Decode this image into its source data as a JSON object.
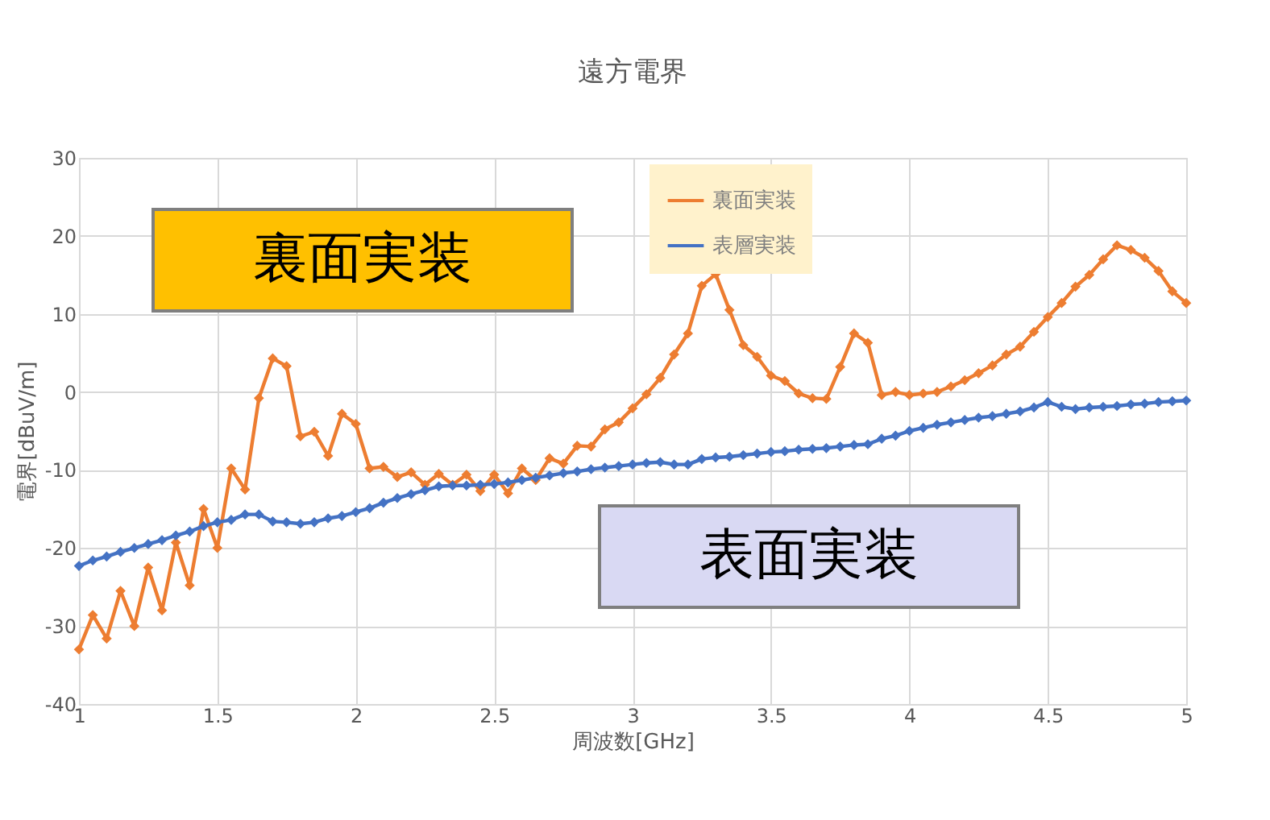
{
  "chart_data": {
    "type": "line",
    "title": "遠方電界",
    "xlabel": "周波数[GHz]",
    "ylabel": "電界[dBuV/m]",
    "x": [
      1.0,
      1.05,
      1.1,
      1.15,
      1.2,
      1.25,
      1.3,
      1.35,
      1.4,
      1.45,
      1.5,
      1.55,
      1.6,
      1.65,
      1.7,
      1.75,
      1.8,
      1.85,
      1.9,
      1.95,
      2.0,
      2.05,
      2.1,
      2.15,
      2.2,
      2.25,
      2.3,
      2.35,
      2.4,
      2.45,
      2.5,
      2.55,
      2.6,
      2.65,
      2.7,
      2.75,
      2.8,
      2.85,
      2.9,
      2.95,
      3.0,
      3.05,
      3.1,
      3.15,
      3.2,
      3.25,
      3.3,
      3.35,
      3.4,
      3.45,
      3.5,
      3.55,
      3.6,
      3.65,
      3.7,
      3.75,
      3.8,
      3.85,
      3.9,
      3.95,
      4.0,
      4.05,
      4.1,
      4.15,
      4.2,
      4.25,
      4.3,
      4.35,
      4.4,
      4.45,
      4.5,
      4.55,
      4.6,
      4.65,
      4.7,
      4.75,
      4.8,
      4.85,
      4.9,
      4.95,
      5.0
    ],
    "series": [
      {
        "name": "裏面実装",
        "color": "#ed7d31",
        "values": [
          -33.0,
          -28.6,
          -31.6,
          -25.5,
          -30.0,
          -22.5,
          -28.0,
          -19.3,
          -24.8,
          -15.0,
          -20.0,
          -9.8,
          -12.5,
          -0.8,
          4.3,
          3.3,
          -5.7,
          -5.1,
          -8.2,
          -2.8,
          -4.1,
          -9.8,
          -9.6,
          -10.9,
          -10.3,
          -11.9,
          -10.5,
          -11.9,
          -10.6,
          -12.7,
          -10.6,
          -13.0,
          -9.8,
          -11.3,
          -8.5,
          -9.2,
          -6.9,
          -7.0,
          -4.8,
          -3.9,
          -2.1,
          -0.3,
          1.8,
          4.8,
          7.5,
          13.6,
          15.1,
          10.5,
          6.0,
          4.5,
          2.1,
          1.4,
          -0.2,
          -0.8,
          -0.9,
          3.2,
          7.5,
          6.3,
          -0.4,
          0.0,
          -0.4,
          -0.2,
          0.0,
          0.7,
          1.5,
          2.4,
          3.4,
          4.8,
          5.8,
          7.7,
          9.6,
          11.4,
          13.5,
          15.0,
          17.0,
          18.8,
          18.2,
          17.2,
          15.5,
          12.9,
          11.4
        ]
      },
      {
        "name": "表層実装",
        "color": "#4472c4",
        "values": [
          -22.3,
          -21.6,
          -21.1,
          -20.5,
          -20.0,
          -19.5,
          -19.0,
          -18.4,
          -17.9,
          -17.2,
          -16.7,
          -16.4,
          -15.7,
          -15.7,
          -16.6,
          -16.7,
          -16.9,
          -16.7,
          -16.2,
          -15.9,
          -15.4,
          -14.9,
          -14.2,
          -13.6,
          -13.1,
          -12.6,
          -12.1,
          -12.0,
          -12.0,
          -11.9,
          -11.8,
          -11.6,
          -11.3,
          -11.0,
          -10.7,
          -10.4,
          -10.2,
          -9.9,
          -9.7,
          -9.5,
          -9.3,
          -9.1,
          -9.0,
          -9.3,
          -9.3,
          -8.6,
          -8.4,
          -8.3,
          -8.1,
          -7.9,
          -7.7,
          -7.6,
          -7.4,
          -7.3,
          -7.2,
          -7.0,
          -6.8,
          -6.7,
          -6.0,
          -5.6,
          -5.0,
          -4.6,
          -4.2,
          -3.9,
          -3.6,
          -3.3,
          -3.1,
          -2.8,
          -2.5,
          -2.0,
          -1.3,
          -1.9,
          -2.2,
          -2.0,
          -1.9,
          -1.8,
          -1.6,
          -1.5,
          -1.3,
          -1.2,
          -1.1
        ]
      }
    ],
    "xlim": [
      1,
      5
    ],
    "xticks": [
      1,
      1.5,
      2,
      2.5,
      3,
      3.5,
      4,
      4.5,
      5
    ],
    "ylim": [
      -40,
      30
    ],
    "yticks": [
      -40,
      -30,
      -20,
      -10,
      0,
      10,
      20,
      30
    ],
    "annotations": [
      "裏面実装",
      "表面実装"
    ],
    "grid": true,
    "legend": "top right",
    "marker": "diamond",
    "line_style": "solid"
  }
}
